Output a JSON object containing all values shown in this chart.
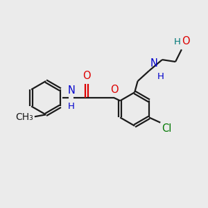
{
  "bg_color": "#ebebeb",
  "bond_color": "#1a1a1a",
  "N_color": "#0000cc",
  "O_color": "#dd0000",
  "Cl_color": "#007700",
  "HO_color": "#007777",
  "line_width": 1.6,
  "font_size": 10.5,
  "xlim": [
    0,
    10
  ],
  "ylim": [
    0,
    10
  ]
}
